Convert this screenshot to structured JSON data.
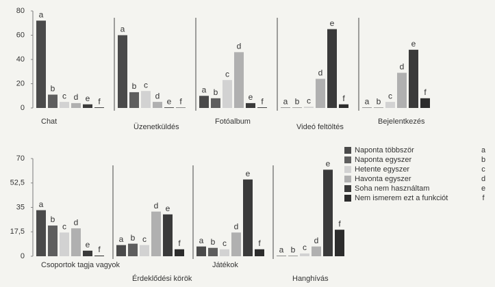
{
  "chart_data": [
    {
      "type": "bar",
      "categories": [
        "Chat",
        "Üzenetküldés",
        "Fotóalbum",
        "Videó feltöltés",
        "Bejelentkezés"
      ],
      "series": [
        {
          "code": "a",
          "color": "#4a4a4a",
          "values": [
            72,
            60,
            10,
            0.3,
            0.3
          ]
        },
        {
          "code": "b",
          "color": "#5e5e5e",
          "values": [
            11,
            13,
            8,
            0.3,
            0.3
          ]
        },
        {
          "code": "c",
          "color": "#d2d2d2",
          "values": [
            5,
            14,
            23,
            1,
            5
          ]
        },
        {
          "code": "d",
          "color": "#b0b0b0",
          "values": [
            4,
            5,
            46,
            24,
            29
          ]
        },
        {
          "code": "e",
          "color": "#3a3a3a",
          "values": [
            3,
            0.5,
            4,
            65,
            48
          ]
        },
        {
          "code": "f",
          "color": "#2c2c2c",
          "values": [
            0.5,
            0.3,
            0.5,
            3,
            8
          ]
        }
      ],
      "ylim": [
        0,
        80
      ],
      "yticks": [
        0,
        20,
        40,
        60,
        80
      ]
    },
    {
      "type": "bar",
      "categories": [
        "Csoportok tagja vagyok",
        "Érdeklődési körök",
        "Játékok",
        "Hanghívás"
      ],
      "series": [
        {
          "name": "Naponta többször",
          "code": "a",
          "color": "#4a4a4a",
          "values": [
            33,
            8,
            7,
            0.3
          ]
        },
        {
          "name": "Naponta egyszer",
          "code": "b",
          "color": "#5e5e5e",
          "values": [
            22,
            9,
            6,
            0.3
          ]
        },
        {
          "name": "Hetente egyszer",
          "code": "c",
          "color": "#d2d2d2",
          "values": [
            17,
            8,
            5,
            2
          ]
        },
        {
          "name": "Havonta egyszer",
          "code": "d",
          "color": "#b0b0b0",
          "values": [
            20,
            32,
            17,
            7
          ]
        },
        {
          "name": "Soha nem használtam",
          "code": "e",
          "color": "#3a3a3a",
          "values": [
            4,
            30,
            55,
            62
          ]
        },
        {
          "name": "Nem ismerem ezt a funkciót",
          "code": "f",
          "color": "#2c2c2c",
          "values": [
            0.5,
            5,
            5,
            19
          ]
        }
      ],
      "ylim": [
        0,
        70
      ],
      "yticks": [
        0,
        {
          "value": 17.5,
          "label": "17,5"
        },
        35,
        {
          "value": 52.5,
          "label": "52,5"
        },
        70
      ],
      "legend": "right"
    }
  ]
}
